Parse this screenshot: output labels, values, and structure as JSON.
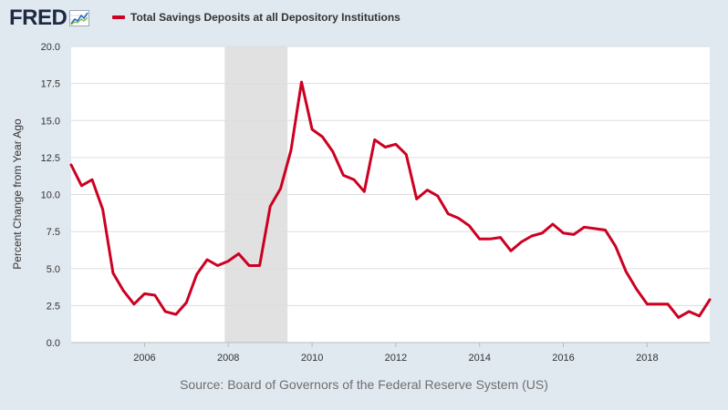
{
  "app": {
    "logo_text": "FRED",
    "logo_icon": "fred-line-graph-icon"
  },
  "source_text": "Source: Board of Governors of the Federal Reserve System (US)",
  "colors": {
    "series": "#cc0022",
    "background": "#e1e9f0",
    "plot_background": "#ffffff",
    "recession": "#e1e1e1",
    "grid": "#dddddd"
  },
  "chart_data": {
    "type": "line",
    "title": "",
    "xlabel": "",
    "ylabel": "Percent Change from Year Ago",
    "ylim": [
      0,
      20
    ],
    "yticks": [
      "0.0",
      "2.5",
      "5.0",
      "7.5",
      "10.0",
      "12.5",
      "15.0",
      "17.5",
      "20.0"
    ],
    "xlim": [
      "2004-04-01",
      "2019-07-01"
    ],
    "xticks": [
      "2006",
      "2008",
      "2010",
      "2012",
      "2014",
      "2016",
      "2018"
    ],
    "grid": "horizontal",
    "legend": "top-left",
    "recession_shading": [
      {
        "start": "2007-12-01",
        "end": "2009-06-01"
      }
    ],
    "series": [
      {
        "name": "Total Savings Deposits at all Depository Institutions",
        "color": "#cc0022",
        "points": [
          [
            "2004-04-01",
            12.0
          ],
          [
            "2004-07-01",
            10.6
          ],
          [
            "2004-10-01",
            11.0
          ],
          [
            "2005-01-01",
            9.0
          ],
          [
            "2005-04-01",
            4.7
          ],
          [
            "2005-07-01",
            3.5
          ],
          [
            "2005-10-01",
            2.6
          ],
          [
            "2006-01-01",
            3.3
          ],
          [
            "2006-04-01",
            3.2
          ],
          [
            "2006-07-01",
            2.1
          ],
          [
            "2006-10-01",
            1.9
          ],
          [
            "2007-01-01",
            2.7
          ],
          [
            "2007-04-01",
            4.6
          ],
          [
            "2007-07-01",
            5.6
          ],
          [
            "2007-10-01",
            5.2
          ],
          [
            "2008-01-01",
            5.5
          ],
          [
            "2008-04-01",
            6.0
          ],
          [
            "2008-07-01",
            5.2
          ],
          [
            "2008-10-01",
            5.2
          ],
          [
            "2009-01-01",
            9.2
          ],
          [
            "2009-04-01",
            10.4
          ],
          [
            "2009-07-01",
            13.0
          ],
          [
            "2009-10-01",
            17.6
          ],
          [
            "2010-01-01",
            14.4
          ],
          [
            "2010-04-01",
            13.9
          ],
          [
            "2010-07-01",
            12.9
          ],
          [
            "2010-10-01",
            11.3
          ],
          [
            "2011-01-01",
            11.0
          ],
          [
            "2011-04-01",
            10.2
          ],
          [
            "2011-07-01",
            13.7
          ],
          [
            "2011-10-01",
            13.2
          ],
          [
            "2012-01-01",
            13.4
          ],
          [
            "2012-04-01",
            12.7
          ],
          [
            "2012-07-01",
            9.7
          ],
          [
            "2012-10-01",
            10.3
          ],
          [
            "2013-01-01",
            9.9
          ],
          [
            "2013-04-01",
            8.7
          ],
          [
            "2013-07-01",
            8.4
          ],
          [
            "2013-10-01",
            7.9
          ],
          [
            "2014-01-01",
            7.0
          ],
          [
            "2014-04-01",
            7.0
          ],
          [
            "2014-07-01",
            7.1
          ],
          [
            "2014-10-01",
            6.2
          ],
          [
            "2015-01-01",
            6.8
          ],
          [
            "2015-04-01",
            7.2
          ],
          [
            "2015-07-01",
            7.4
          ],
          [
            "2015-10-01",
            8.0
          ],
          [
            "2016-01-01",
            7.4
          ],
          [
            "2016-04-01",
            7.3
          ],
          [
            "2016-07-01",
            7.8
          ],
          [
            "2016-10-01",
            7.7
          ],
          [
            "2017-01-01",
            7.6
          ],
          [
            "2017-04-01",
            6.5
          ],
          [
            "2017-07-01",
            4.8
          ],
          [
            "2017-10-01",
            3.6
          ],
          [
            "2018-01-01",
            2.6
          ],
          [
            "2018-04-01",
            2.6
          ],
          [
            "2018-07-01",
            2.6
          ],
          [
            "2018-10-01",
            1.7
          ],
          [
            "2019-01-01",
            2.1
          ],
          [
            "2019-04-01",
            1.8
          ],
          [
            "2019-07-01",
            2.9
          ]
        ]
      }
    ]
  }
}
